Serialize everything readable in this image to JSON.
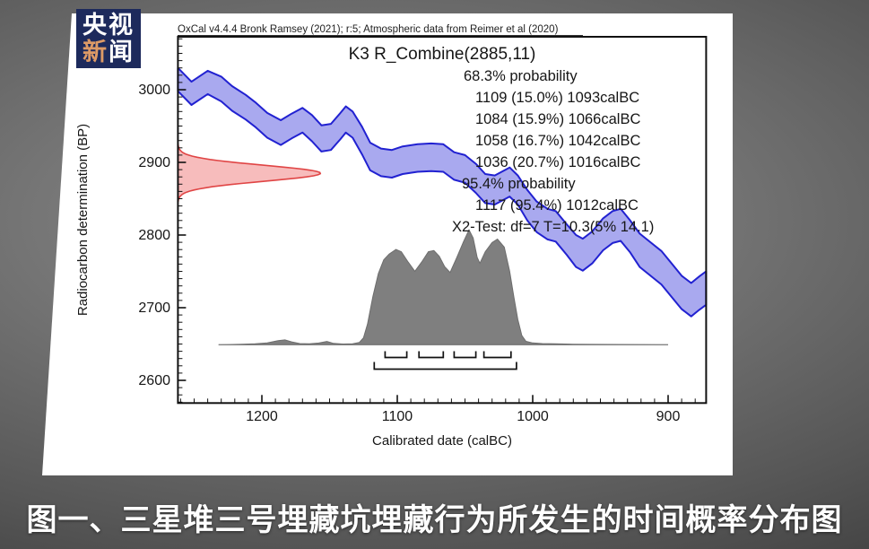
{
  "logo": {
    "line1": "央视",
    "line2_first": "新",
    "line2_rest": "闻"
  },
  "caption": "图一、三星堆三号埋藏坑埋藏行为所发生的时间概率分布图",
  "chart": {
    "header": "OxCal v4.4.4 Bronk Ramsey (2021); r:5; Atmospheric data from Reimer et al (2020)",
    "title": "K3 R_Combine(2885,11)",
    "ylabel": "Radiocarbon determination (BP)",
    "xlabel": "Calibrated date (calBC)",
    "stats_lines": [
      "68.3% probability",
      "1109 (15.0%) 1093calBC",
      "1084 (15.9%) 1066calBC",
      "1058 (16.7%) 1042calBC",
      "1036 (20.7%) 1016calBC",
      "95.4% probability",
      "1117 (95.4%) 1012calBC",
      "X2-Test: df=7 T=10.3(5% 14.1)"
    ],
    "y_ticks": [
      "3000",
      "2900",
      "2800",
      "2700",
      "2600"
    ],
    "x_ticks": [
      "1200",
      "1100",
      "1000",
      "900"
    ]
  },
  "chart_data": {
    "type": "area",
    "title": "K3 R_Combine(2885,11)",
    "xlabel": "Calibrated date (calBC)",
    "ylabel": "Radiocarbon determination (BP)",
    "x_axis": {
      "ticks": [
        1200,
        1100,
        1000,
        900
      ],
      "range_calBC": [
        1262,
        872
      ],
      "minor_step": 10,
      "direction": "values decrease to the right"
    },
    "y_axis": {
      "ticks": [
        3000,
        2900,
        2800,
        2700,
        2600
      ],
      "range_BP": [
        2569,
        3073
      ],
      "minor_step": 10
    },
    "colors": {
      "curve_fill": "#a9a9ef",
      "curve_stroke": "#2121d1",
      "date_fill": "#f7bcbc",
      "date_stroke": "#e04545",
      "posterior_fill": "#7f7f7f",
      "posterior_stroke": "#6d6d6d",
      "axis": "#111111"
    },
    "calibration_curve": {
      "name": "atmospheric calibration curve (Reimer et al 2020)",
      "points_calBC_topBP_botBP": [
        [
          1262,
          3030,
          2998
        ],
        [
          1252,
          3011,
          2979
        ],
        [
          1240,
          3026,
          2994
        ],
        [
          1230,
          3018,
          2984
        ],
        [
          1222,
          3005,
          2971
        ],
        [
          1212,
          2993,
          2959
        ],
        [
          1205,
          2983,
          2949
        ],
        [
          1196,
          2968,
          2934
        ],
        [
          1186,
          2958,
          2924
        ],
        [
          1178,
          2967,
          2933
        ],
        [
          1170,
          2975,
          2941
        ],
        [
          1163,
          2965,
          2929
        ],
        [
          1156,
          2951,
          2915
        ],
        [
          1149,
          2953,
          2917
        ],
        [
          1142,
          2968,
          2932
        ],
        [
          1138,
          2977,
          2941
        ],
        [
          1133,
          2970,
          2934
        ],
        [
          1126,
          2949,
          2911
        ],
        [
          1120,
          2927,
          2889
        ],
        [
          1112,
          2919,
          2881
        ],
        [
          1104,
          2917,
          2879
        ],
        [
          1096,
          2922,
          2884
        ],
        [
          1085,
          2925,
          2887
        ],
        [
          1075,
          2926,
          2888
        ],
        [
          1066,
          2925,
          2887
        ],
        [
          1058,
          2914,
          2876
        ],
        [
          1050,
          2910,
          2872
        ],
        [
          1042,
          2898,
          2858
        ],
        [
          1035,
          2884,
          2844
        ],
        [
          1028,
          2882,
          2842
        ],
        [
          1022,
          2888,
          2848
        ],
        [
          1017,
          2893,
          2853
        ],
        [
          1011,
          2882,
          2842
        ],
        [
          1004,
          2862,
          2820
        ],
        [
          997,
          2846,
          2804
        ],
        [
          989,
          2836,
          2794
        ],
        [
          983,
          2833,
          2791
        ],
        [
          975,
          2815,
          2773
        ],
        [
          968,
          2800,
          2756
        ],
        [
          963,
          2795,
          2751
        ],
        [
          956,
          2805,
          2761
        ],
        [
          948,
          2823,
          2779
        ],
        [
          941,
          2833,
          2789
        ],
        [
          935,
          2836,
          2792
        ],
        [
          928,
          2820,
          2776
        ],
        [
          921,
          2802,
          2756
        ],
        [
          913,
          2790,
          2744
        ],
        [
          905,
          2778,
          2732
        ],
        [
          897,
          2760,
          2714
        ],
        [
          890,
          2744,
          2698
        ],
        [
          883,
          2734,
          2688
        ],
        [
          877,
          2743,
          2697
        ],
        [
          872,
          2750,
          2704
        ]
      ]
    },
    "radiocarbon_date": {
      "name": "R_Combine(2885,11)",
      "mean_bp": 2885,
      "sigma_bp": 11
    },
    "calibrated_distribution": {
      "name": "K3 calibrated probability density",
      "points_calBC_relDensity": [
        [
          1232,
          0
        ],
        [
          1215,
          0.004
        ],
        [
          1205,
          0.008
        ],
        [
          1196,
          0.016
        ],
        [
          1188,
          0.035
        ],
        [
          1183,
          0.042
        ],
        [
          1178,
          0.025
        ],
        [
          1172,
          0.01
        ],
        [
          1165,
          0.008
        ],
        [
          1158,
          0.015
        ],
        [
          1152,
          0.028
        ],
        [
          1147,
          0.012
        ],
        [
          1140,
          0.006
        ],
        [
          1133,
          0.008
        ],
        [
          1128,
          0.02
        ],
        [
          1125,
          0.06
        ],
        [
          1122,
          0.18
        ],
        [
          1118,
          0.42
        ],
        [
          1114,
          0.62
        ],
        [
          1110,
          0.74
        ],
        [
          1106,
          0.79
        ],
        [
          1101,
          0.83
        ],
        [
          1097,
          0.81
        ],
        [
          1092,
          0.72
        ],
        [
          1087,
          0.64
        ],
        [
          1082,
          0.72
        ],
        [
          1077,
          0.81
        ],
        [
          1073,
          0.82
        ],
        [
          1069,
          0.77
        ],
        [
          1065,
          0.68
        ],
        [
          1061,
          0.63
        ],
        [
          1056,
          0.76
        ],
        [
          1051,
          0.9
        ],
        [
          1047,
          1.0
        ],
        [
          1044,
          0.93
        ],
        [
          1041,
          0.76
        ],
        [
          1039,
          0.71
        ],
        [
          1035,
          0.81
        ],
        [
          1030,
          0.89
        ],
        [
          1026,
          0.92
        ],
        [
          1021,
          0.85
        ],
        [
          1017,
          0.64
        ],
        [
          1014,
          0.42
        ],
        [
          1011,
          0.22
        ],
        [
          1008,
          0.08
        ],
        [
          1005,
          0.03
        ],
        [
          1000,
          0.016
        ],
        [
          993,
          0.01
        ],
        [
          983,
          0.008
        ],
        [
          970,
          0.005
        ],
        [
          955,
          0.003
        ],
        [
          935,
          0.002
        ],
        [
          905,
          0.001
        ],
        [
          900,
          0.001
        ]
      ]
    },
    "ranges_68_3_calBC": [
      [
        1109,
        1093
      ],
      [
        1084,
        1066
      ],
      [
        1058,
        1042
      ],
      [
        1036,
        1016
      ]
    ],
    "range_95_4_calBC": [
      1117,
      1012
    ],
    "stats": {
      "probability_68_3": [
        {
          "from": 1109,
          "pct": 15.0,
          "to": 1093
        },
        {
          "from": 1084,
          "pct": 15.9,
          "to": 1066
        },
        {
          "from": 1058,
          "pct": 16.7,
          "to": 1042
        },
        {
          "from": 1036,
          "pct": 20.7,
          "to": 1016
        }
      ],
      "probability_95_4": [
        {
          "from": 1117,
          "pct": 95.4,
          "to": 1012
        }
      ],
      "x2_test": {
        "df": 7,
        "T": 10.3,
        "threshold_5pct": 14.1
      }
    }
  }
}
